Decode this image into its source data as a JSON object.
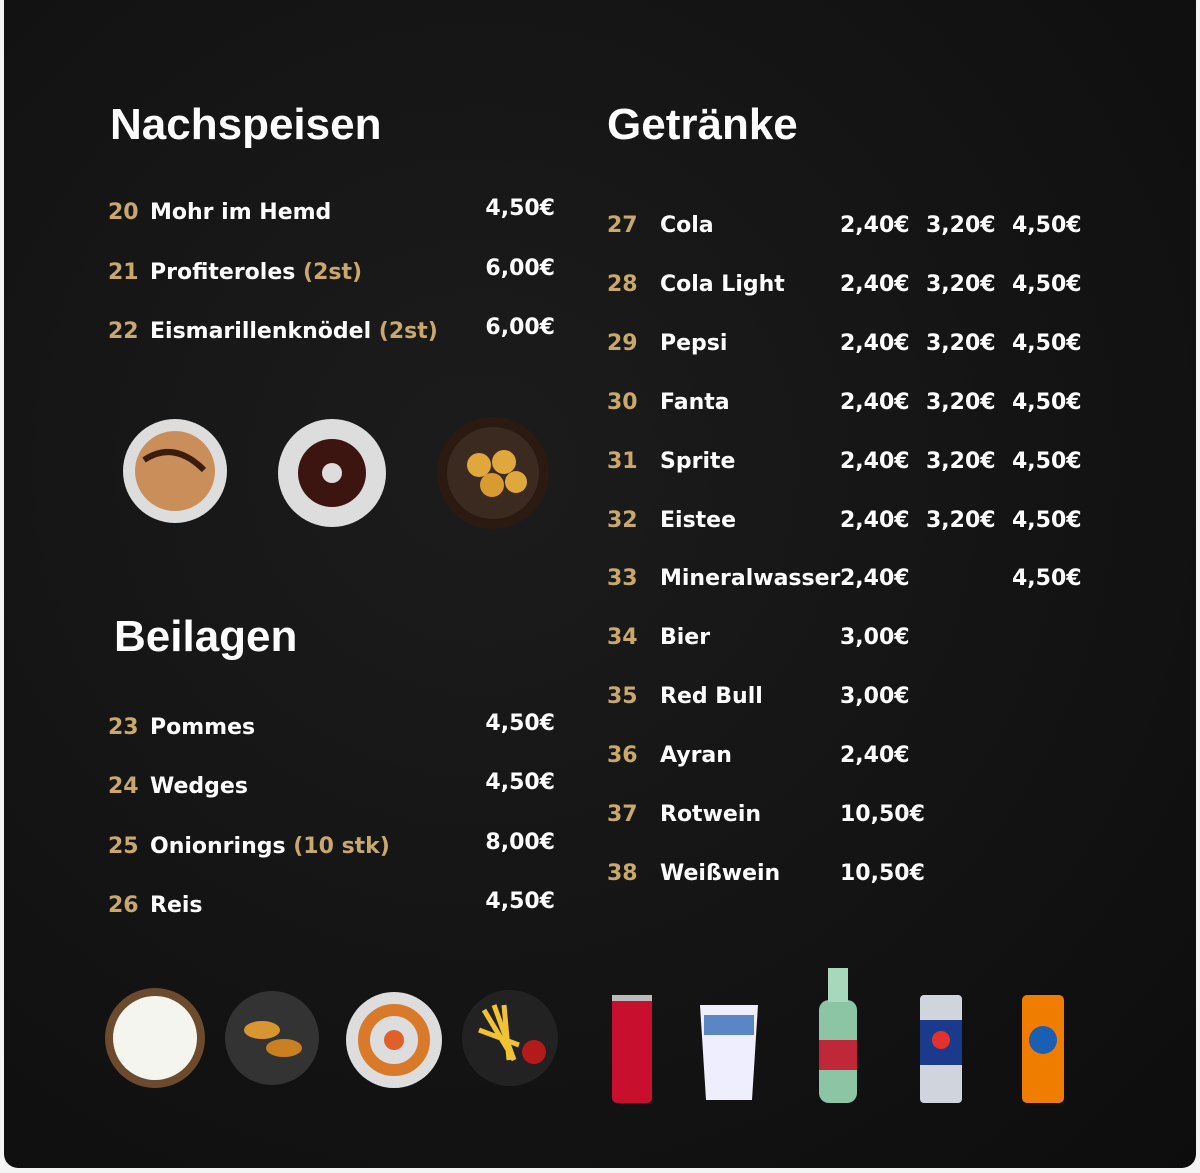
{
  "nachspeisen": {
    "title": "Nachspeisen",
    "items": [
      {
        "number": "20",
        "name": "Mohr im Hemd",
        "price": "4,50€"
      },
      {
        "number": "21",
        "name": "Profiteroles",
        "note": "(2st)",
        "price": "6,00€"
      },
      {
        "number": "22",
        "name": "Eismarillenknödel",
        "note": "(2st)",
        "price": "6,00€"
      }
    ]
  },
  "beilagen": {
    "title": "Beilagen",
    "items": [
      {
        "number": "23",
        "name": "Pommes",
        "price": "4,50€"
      },
      {
        "number": "24",
        "name": "Wedges",
        "price": "4,50€"
      },
      {
        "number": "25",
        "name": "Onionrings",
        "note": "(10 stk)",
        "price": "8,00€"
      },
      {
        "number": "26",
        "name": "Reis",
        "price": "4,50€"
      }
    ]
  },
  "getraenke": {
    "title": "Getränke",
    "items": [
      {
        "number": "27",
        "name": "Cola",
        "prices": [
          "2,40€",
          "3,20€",
          "4,50€"
        ]
      },
      {
        "number": "28",
        "name": "Cola Light",
        "prices": [
          "2,40€",
          "3,20€",
          "4,50€"
        ]
      },
      {
        "number": "29",
        "name": "Pepsi",
        "prices": [
          "2,40€",
          "3,20€",
          "4,50€"
        ]
      },
      {
        "number": "30",
        "name": "Fanta",
        "prices": [
          "2,40€",
          "3,20€",
          "4,50€"
        ]
      },
      {
        "number": "31",
        "name": "Sprite",
        "prices": [
          "2,40€",
          "3,20€",
          "4,50€"
        ]
      },
      {
        "number": "32",
        "name": "Eistee",
        "prices": [
          "2,40€",
          "3,20€",
          "4,50€"
        ]
      },
      {
        "number": "33",
        "name": "Mineralwasser",
        "prices": [
          "2,40€",
          null,
          "4,50€"
        ]
      },
      {
        "number": "34",
        "name": "Bier",
        "prices": [
          "3,00€"
        ]
      },
      {
        "number": "35",
        "name": "Red Bull",
        "prices": [
          "3,00€"
        ]
      },
      {
        "number": "36",
        "name": "Ayran",
        "prices": [
          "2,40€"
        ]
      },
      {
        "number": "37",
        "name": "Rotwein",
        "prices": [
          "10,50€"
        ]
      },
      {
        "number": "38",
        "name": "Weißwein",
        "prices": [
          "10,50€"
        ]
      }
    ]
  }
}
